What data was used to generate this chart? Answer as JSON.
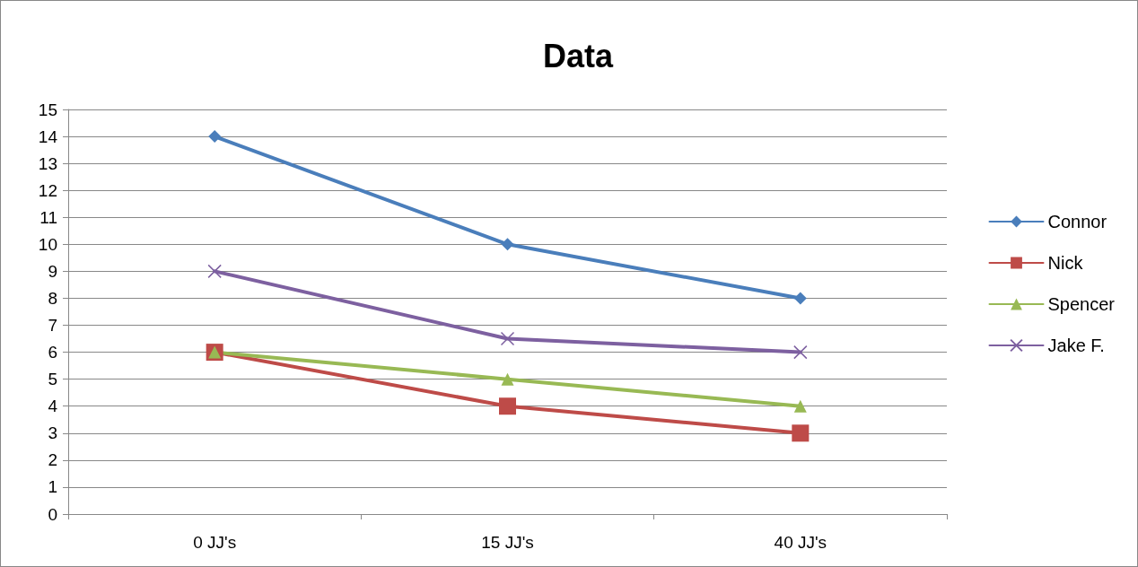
{
  "chart_data": {
    "type": "line",
    "title": "Data",
    "categories": [
      "0 JJ's",
      "15 JJ's",
      "40 JJ's"
    ],
    "series": [
      {
        "name": "Connor",
        "color": "#4a7ebb",
        "marker": "diamond",
        "values": [
          14,
          10,
          8
        ]
      },
      {
        "name": "Nick",
        "color": "#be4b48",
        "marker": "square",
        "values": [
          6,
          4,
          3
        ]
      },
      {
        "name": "Spencer",
        "color": "#98b954",
        "marker": "triangle",
        "values": [
          6,
          5,
          4
        ]
      },
      {
        "name": "Jake F.",
        "color": "#7d60a0",
        "marker": "cross",
        "values": [
          9,
          6.5,
          6
        ]
      }
    ],
    "ylim": [
      0,
      15
    ],
    "yticks": [
      0,
      1,
      2,
      3,
      4,
      5,
      6,
      7,
      8,
      9,
      10,
      11,
      12,
      13,
      14,
      15
    ],
    "grid": "y",
    "legend": "right",
    "line_style": "solid"
  }
}
